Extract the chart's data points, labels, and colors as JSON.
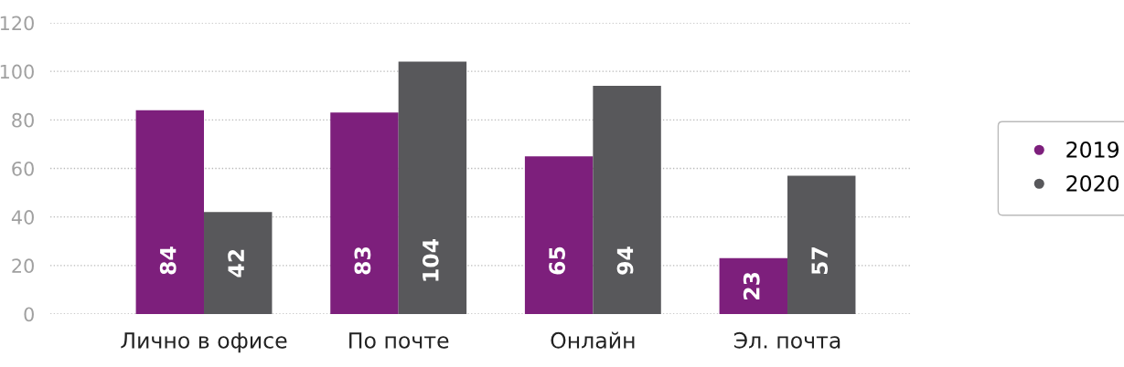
{
  "chart_data": {
    "type": "bar",
    "categories": [
      "Лично в офисе",
      "По почте",
      "Онлайн",
      "Эл. почта"
    ],
    "series": [
      {
        "name": "2019",
        "color": "#7d1f7c",
        "values": [
          84,
          83,
          65,
          23
        ]
      },
      {
        "name": "2020",
        "color": "#58585b",
        "values": [
          42,
          104,
          94,
          57
        ]
      }
    ],
    "ylim": [
      0,
      120
    ],
    "yticks": [
      0,
      20,
      40,
      60,
      80,
      100,
      120
    ],
    "grid": "y",
    "data_labels": true,
    "legend": "right",
    "marker": "circle"
  }
}
